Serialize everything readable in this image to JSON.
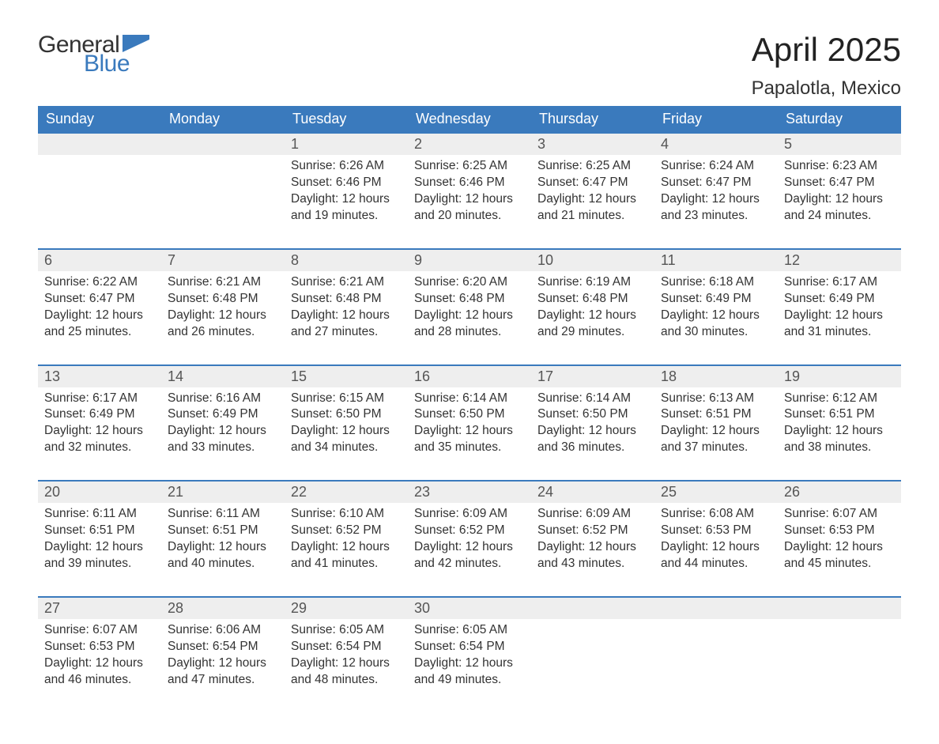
{
  "logo": {
    "word1": "General",
    "word2": "Blue",
    "accent_color": "#3a7abd",
    "text_color": "#333333"
  },
  "title": "April 2025",
  "location": "Papalotla, Mexico",
  "colors": {
    "header_bg": "#3a7abd",
    "header_text": "#ffffff",
    "daynum_bg": "#eeeeee",
    "row_border": "#3a7abd",
    "body_text": "#333333",
    "background": "#ffffff"
  },
  "typography": {
    "title_fontsize": 42,
    "location_fontsize": 24,
    "header_fontsize": 18,
    "daynum_fontsize": 18,
    "cell_fontsize": 15.5,
    "logo_fontsize": 30
  },
  "columns": [
    "Sunday",
    "Monday",
    "Tuesday",
    "Wednesday",
    "Thursday",
    "Friday",
    "Saturday"
  ],
  "labels": {
    "sunrise": "Sunrise:",
    "sunset": "Sunset:",
    "daylight": "Daylight:"
  },
  "weeks": [
    [
      null,
      null,
      {
        "day": "1",
        "sunrise": "6:26 AM",
        "sunset": "6:46 PM",
        "daylight": "12 hours and 19 minutes."
      },
      {
        "day": "2",
        "sunrise": "6:25 AM",
        "sunset": "6:46 PM",
        "daylight": "12 hours and 20 minutes."
      },
      {
        "day": "3",
        "sunrise": "6:25 AM",
        "sunset": "6:47 PM",
        "daylight": "12 hours and 21 minutes."
      },
      {
        "day": "4",
        "sunrise": "6:24 AM",
        "sunset": "6:47 PM",
        "daylight": "12 hours and 23 minutes."
      },
      {
        "day": "5",
        "sunrise": "6:23 AM",
        "sunset": "6:47 PM",
        "daylight": "12 hours and 24 minutes."
      }
    ],
    [
      {
        "day": "6",
        "sunrise": "6:22 AM",
        "sunset": "6:47 PM",
        "daylight": "12 hours and 25 minutes."
      },
      {
        "day": "7",
        "sunrise": "6:21 AM",
        "sunset": "6:48 PM",
        "daylight": "12 hours and 26 minutes."
      },
      {
        "day": "8",
        "sunrise": "6:21 AM",
        "sunset": "6:48 PM",
        "daylight": "12 hours and 27 minutes."
      },
      {
        "day": "9",
        "sunrise": "6:20 AM",
        "sunset": "6:48 PM",
        "daylight": "12 hours and 28 minutes."
      },
      {
        "day": "10",
        "sunrise": "6:19 AM",
        "sunset": "6:48 PM",
        "daylight": "12 hours and 29 minutes."
      },
      {
        "day": "11",
        "sunrise": "6:18 AM",
        "sunset": "6:49 PM",
        "daylight": "12 hours and 30 minutes."
      },
      {
        "day": "12",
        "sunrise": "6:17 AM",
        "sunset": "6:49 PM",
        "daylight": "12 hours and 31 minutes."
      }
    ],
    [
      {
        "day": "13",
        "sunrise": "6:17 AM",
        "sunset": "6:49 PM",
        "daylight": "12 hours and 32 minutes."
      },
      {
        "day": "14",
        "sunrise": "6:16 AM",
        "sunset": "6:49 PM",
        "daylight": "12 hours and 33 minutes."
      },
      {
        "day": "15",
        "sunrise": "6:15 AM",
        "sunset": "6:50 PM",
        "daylight": "12 hours and 34 minutes."
      },
      {
        "day": "16",
        "sunrise": "6:14 AM",
        "sunset": "6:50 PM",
        "daylight": "12 hours and 35 minutes."
      },
      {
        "day": "17",
        "sunrise": "6:14 AM",
        "sunset": "6:50 PM",
        "daylight": "12 hours and 36 minutes."
      },
      {
        "day": "18",
        "sunrise": "6:13 AM",
        "sunset": "6:51 PM",
        "daylight": "12 hours and 37 minutes."
      },
      {
        "day": "19",
        "sunrise": "6:12 AM",
        "sunset": "6:51 PM",
        "daylight": "12 hours and 38 minutes."
      }
    ],
    [
      {
        "day": "20",
        "sunrise": "6:11 AM",
        "sunset": "6:51 PM",
        "daylight": "12 hours and 39 minutes."
      },
      {
        "day": "21",
        "sunrise": "6:11 AM",
        "sunset": "6:51 PM",
        "daylight": "12 hours and 40 minutes."
      },
      {
        "day": "22",
        "sunrise": "6:10 AM",
        "sunset": "6:52 PM",
        "daylight": "12 hours and 41 minutes."
      },
      {
        "day": "23",
        "sunrise": "6:09 AM",
        "sunset": "6:52 PM",
        "daylight": "12 hours and 42 minutes."
      },
      {
        "day": "24",
        "sunrise": "6:09 AM",
        "sunset": "6:52 PM",
        "daylight": "12 hours and 43 minutes."
      },
      {
        "day": "25",
        "sunrise": "6:08 AM",
        "sunset": "6:53 PM",
        "daylight": "12 hours and 44 minutes."
      },
      {
        "day": "26",
        "sunrise": "6:07 AM",
        "sunset": "6:53 PM",
        "daylight": "12 hours and 45 minutes."
      }
    ],
    [
      {
        "day": "27",
        "sunrise": "6:07 AM",
        "sunset": "6:53 PM",
        "daylight": "12 hours and 46 minutes."
      },
      {
        "day": "28",
        "sunrise": "6:06 AM",
        "sunset": "6:54 PM",
        "daylight": "12 hours and 47 minutes."
      },
      {
        "day": "29",
        "sunrise": "6:05 AM",
        "sunset": "6:54 PM",
        "daylight": "12 hours and 48 minutes."
      },
      {
        "day": "30",
        "sunrise": "6:05 AM",
        "sunset": "6:54 PM",
        "daylight": "12 hours and 49 minutes."
      },
      null,
      null,
      null
    ]
  ]
}
